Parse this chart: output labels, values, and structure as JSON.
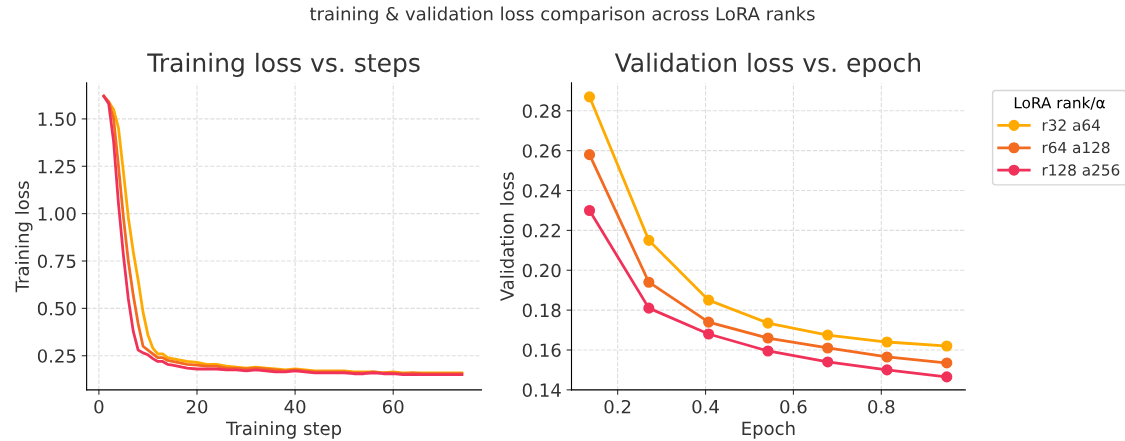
{
  "chart_data": [
    {
      "type": "line",
      "title": "Training loss vs. steps",
      "xlabel": "Training step",
      "ylabel": "Training loss",
      "x": [
        1,
        2,
        3,
        4,
        5,
        6,
        7,
        8,
        9,
        10,
        11,
        12,
        13,
        14,
        15,
        16,
        18,
        20,
        22,
        24,
        26,
        28,
        30,
        32,
        34,
        36,
        38,
        40,
        42,
        44,
        46,
        48,
        50,
        52,
        54,
        56,
        58,
        60,
        62,
        64,
        66,
        68,
        70,
        72,
        74
      ],
      "series": [
        {
          "color": "#ffaa00",
          "values": [
            1.62,
            1.59,
            1.55,
            1.45,
            1.22,
            0.98,
            0.8,
            0.65,
            0.48,
            0.36,
            0.29,
            0.26,
            0.26,
            0.24,
            0.235,
            0.23,
            0.22,
            0.215,
            0.205,
            0.205,
            0.195,
            0.19,
            0.185,
            0.19,
            0.185,
            0.18,
            0.175,
            0.18,
            0.175,
            0.17,
            0.17,
            0.17,
            0.17,
            0.165,
            0.165,
            0.165,
            0.16,
            0.165,
            0.16,
            0.16,
            0.16,
            0.16,
            0.16,
            0.16,
            0.16
          ]
        },
        {
          "color": "#f26b21",
          "values": [
            1.62,
            1.59,
            1.5,
            1.25,
            0.98,
            0.75,
            0.57,
            0.42,
            0.3,
            0.28,
            0.26,
            0.24,
            0.24,
            0.225,
            0.22,
            0.215,
            0.205,
            0.2,
            0.195,
            0.195,
            0.185,
            0.185,
            0.18,
            0.185,
            0.18,
            0.175,
            0.17,
            0.175,
            0.17,
            0.165,
            0.165,
            0.165,
            0.165,
            0.16,
            0.16,
            0.165,
            0.16,
            0.16,
            0.155,
            0.16,
            0.155,
            0.155,
            0.155,
            0.155,
            0.155
          ]
        },
        {
          "color": "#f0325a",
          "values": [
            1.62,
            1.58,
            1.38,
            1.05,
            0.78,
            0.55,
            0.38,
            0.28,
            0.265,
            0.255,
            0.235,
            0.22,
            0.22,
            0.205,
            0.2,
            0.195,
            0.185,
            0.18,
            0.18,
            0.18,
            0.175,
            0.175,
            0.17,
            0.175,
            0.17,
            0.165,
            0.165,
            0.17,
            0.165,
            0.16,
            0.16,
            0.16,
            0.16,
            0.155,
            0.155,
            0.16,
            0.155,
            0.155,
            0.15,
            0.15,
            0.15,
            0.15,
            0.15,
            0.15,
            0.15
          ]
        }
      ],
      "xlim": [
        -2.5,
        78
      ],
      "ylim": [
        0.07,
        1.69
      ],
      "xticks": [
        0,
        20,
        40,
        60
      ],
      "yticks": [
        {
          "value": 0.25,
          "label": "0.25"
        },
        {
          "value": 0.5,
          "label": "0.50"
        },
        {
          "value": 0.75,
          "label": "0.75"
        },
        {
          "value": 1.0,
          "label": "1.00"
        },
        {
          "value": 1.25,
          "label": "1.25"
        },
        {
          "value": 1.5,
          "label": "1.50"
        }
      ],
      "grid": true,
      "line_style": "solid",
      "marker": "none"
    },
    {
      "type": "line",
      "title": "Validation loss vs. epoch",
      "xlabel": "Epoch",
      "ylabel": "Validation loss",
      "legend_title": "LoRA rank/α",
      "x": [
        0.136,
        0.271,
        0.407,
        0.542,
        0.678,
        0.813,
        0.949
      ],
      "series": [
        {
          "name": "r32 a64",
          "color": "#ffaa00",
          "values": [
            0.287,
            0.215,
            0.185,
            0.1735,
            0.1675,
            0.164,
            0.162
          ]
        },
        {
          "name": "r64 a128",
          "color": "#f26b21",
          "values": [
            0.258,
            0.194,
            0.174,
            0.166,
            0.161,
            0.1565,
            0.1535
          ]
        },
        {
          "name": "r128 a256",
          "color": "#f0325a",
          "values": [
            0.23,
            0.181,
            0.168,
            0.1595,
            0.154,
            0.15,
            0.1465
          ]
        }
      ],
      "xlim": [
        0.095,
        0.991
      ],
      "ylim": [
        0.14,
        0.294
      ],
      "xticks": [
        0.2,
        0.4,
        0.6,
        0.8
      ],
      "yticks": [
        {
          "value": 0.14,
          "label": "0.14"
        },
        {
          "value": 0.16,
          "label": "0.16"
        },
        {
          "value": 0.18,
          "label": "0.18"
        },
        {
          "value": 0.2,
          "label": "0.20"
        },
        {
          "value": 0.22,
          "label": "0.22"
        },
        {
          "value": 0.24,
          "label": "0.24"
        },
        {
          "value": 0.26,
          "label": "0.26"
        },
        {
          "value": 0.28,
          "label": "0.28"
        }
      ],
      "grid": true,
      "legend": "top right",
      "line_style": "solid",
      "marker": "circle"
    },
    {
      "type": "other",
      "title": "training & validation loss comparison across LoRA ranks"
    }
  ]
}
